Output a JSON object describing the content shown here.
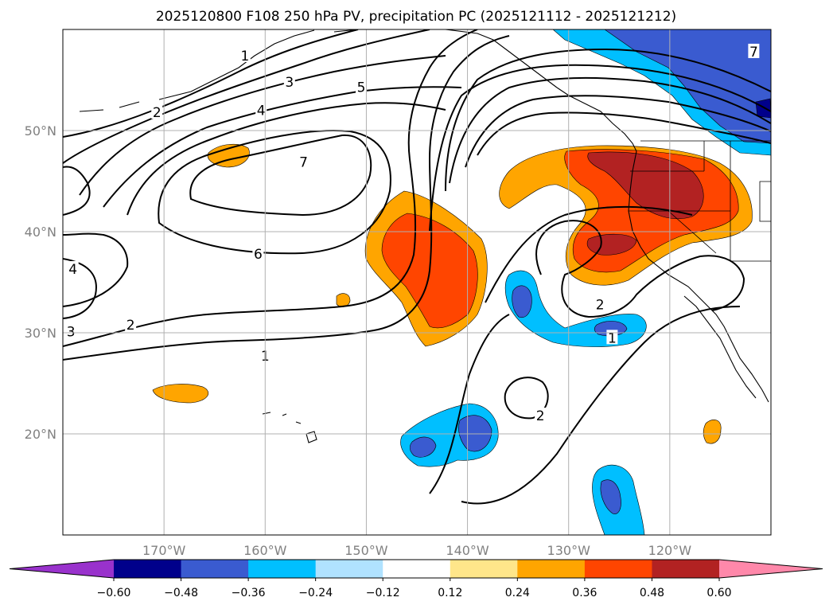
{
  "title": "2025120800 F108 250 hPa PV, precipitation PC (2025121112 - 2025121212)",
  "map": {
    "lon_range": [
      -180,
      -110
    ],
    "lat_range": [
      10,
      60
    ],
    "lat_ticks": [
      {
        "value": 50,
        "label": "50°N"
      },
      {
        "value": 40,
        "label": "40°N"
      },
      {
        "value": 30,
        "label": "30°N"
      },
      {
        "value": 20,
        "label": "20°N"
      }
    ],
    "lon_ticks": [
      {
        "value": -170,
        "label": "170°W"
      },
      {
        "value": -160,
        "label": "160°W"
      },
      {
        "value": -150,
        "label": "150°W"
      },
      {
        "value": -140,
        "label": "140°W"
      },
      {
        "value": -130,
        "label": "130°W"
      },
      {
        "value": -120,
        "label": "120°W"
      }
    ],
    "contour_labels": [
      {
        "text": "1",
        "lon": -162.0,
        "lat": 57.4
      },
      {
        "text": "3",
        "lon": -157.6,
        "lat": 54.8
      },
      {
        "text": "5",
        "lon": -150.5,
        "lat": 54.3
      },
      {
        "text": "2",
        "lon": -170.7,
        "lat": 51.8
      },
      {
        "text": "4",
        "lon": -160.4,
        "lat": 52.0
      },
      {
        "text": "7",
        "lon": -156.2,
        "lat": 46.9
      },
      {
        "text": "6",
        "lon": -160.7,
        "lat": 37.8
      },
      {
        "text": "4",
        "lon": -179.0,
        "lat": 36.3
      },
      {
        "text": "2",
        "lon": -173.3,
        "lat": 30.8
      },
      {
        "text": "3",
        "lon": -179.2,
        "lat": 30.1
      },
      {
        "text": "1",
        "lon": -160.0,
        "lat": 27.7
      },
      {
        "text": "2",
        "lon": -126.9,
        "lat": 32.8
      },
      {
        "text": "1",
        "lon": -125.7,
        "lat": 29.5
      },
      {
        "text": "2",
        "lon": -132.8,
        "lat": 21.8
      },
      {
        "text": "7",
        "lon": -111.7,
        "lat": 57.8
      }
    ]
  },
  "colorbar": {
    "levels": [
      -0.6,
      -0.48,
      -0.36,
      -0.24,
      -0.12,
      0.12,
      0.24,
      0.36,
      0.48,
      0.6
    ],
    "labels": [
      "−0.60",
      "−0.48",
      "−0.36",
      "−0.24",
      "−0.12",
      "0.12",
      "0.24",
      "0.36",
      "0.48",
      "0.60"
    ],
    "colors": [
      "#9932cc",
      "#00008b",
      "#3a5bd0",
      "#00bfff",
      "#b0e2ff",
      "#ffffff",
      "#ffe68a",
      "#ffa500",
      "#ff4500",
      "#b22222",
      "#ff88aa"
    ]
  }
}
